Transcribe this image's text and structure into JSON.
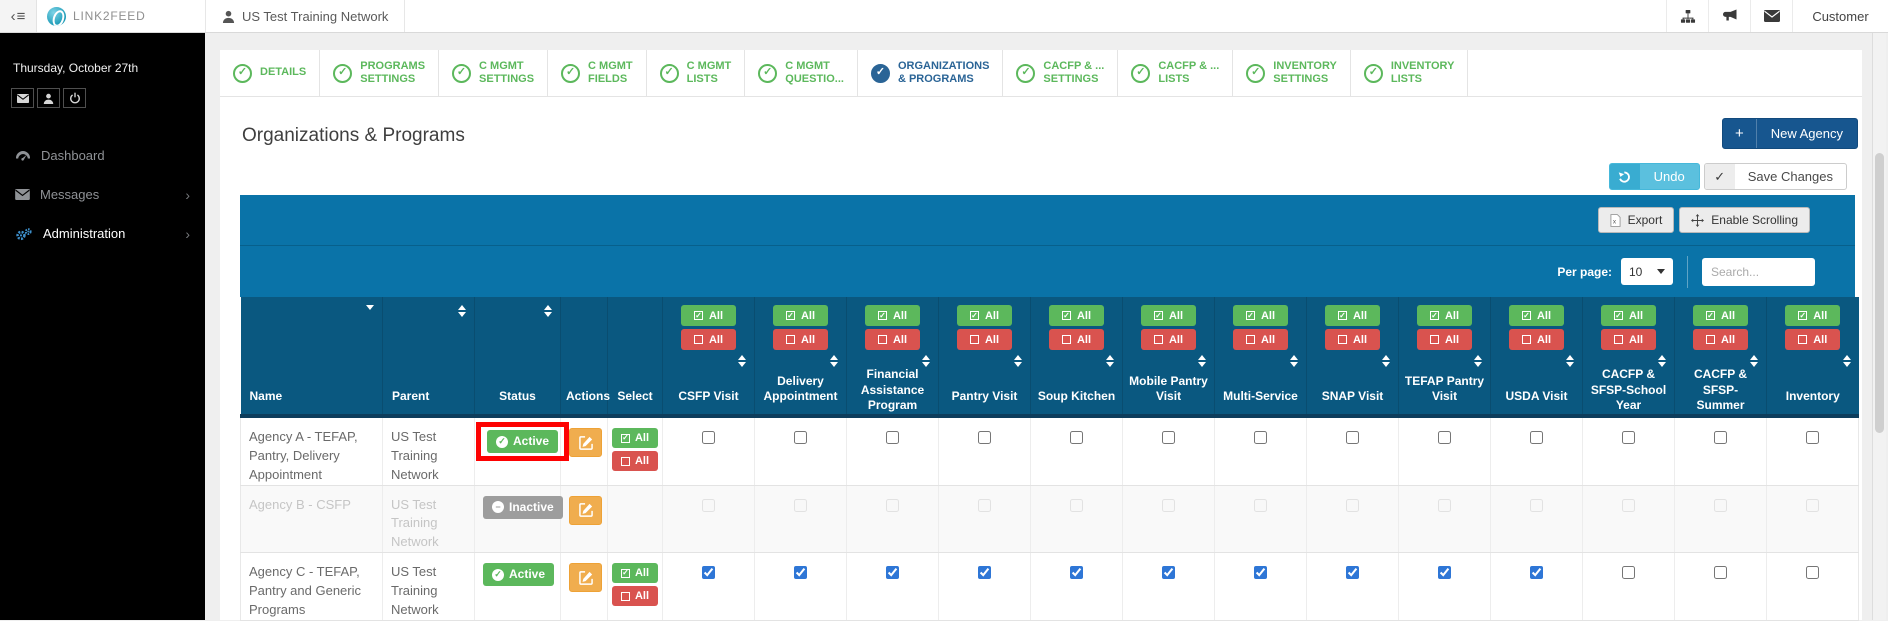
{
  "topbar": {
    "brand": "LINK2FEED",
    "network_tab": "US Test Training Network",
    "user_menu": "Customer"
  },
  "sidebar": {
    "date": "Thursday, October 27th",
    "items": [
      {
        "label": "Dashboard",
        "chevron": ""
      },
      {
        "label": "Messages",
        "chevron": "›"
      },
      {
        "label": "Administration",
        "chevron": "›"
      }
    ]
  },
  "wizard_tabs": [
    {
      "line1": "DETAILS",
      "line2": "",
      "active": false
    },
    {
      "line1": "PROGRAMS",
      "line2": "SETTINGS",
      "active": false
    },
    {
      "line1": "C MGMT",
      "line2": "SETTINGS",
      "active": false
    },
    {
      "line1": "C MGMT",
      "line2": "FIELDS",
      "active": false
    },
    {
      "line1": "C MGMT",
      "line2": "LISTS",
      "active": false
    },
    {
      "line1": "C MGMT",
      "line2": "QUESTIO...",
      "active": false
    },
    {
      "line1": "ORGANIZATIONS",
      "line2": "& PROGRAMS",
      "active": true
    },
    {
      "line1": "CACFP & ...",
      "line2": "SETTINGS",
      "active": false
    },
    {
      "line1": "CACFP & ...",
      "line2": "LISTS",
      "active": false
    },
    {
      "line1": "INVENTORY",
      "line2": "SETTINGS",
      "active": false
    },
    {
      "line1": "INVENTORY",
      "line2": "LISTS",
      "active": false
    }
  ],
  "page": {
    "title": "Organizations & Programs",
    "new_agency_label": "New Agency",
    "undo_label": "Undo",
    "save_label": "Save Changes"
  },
  "table": {
    "export_label": "Export",
    "enable_scrolling_label": "Enable Scrolling",
    "per_page_label": "Per page:",
    "per_page_value": "10",
    "search_placeholder": "Search...",
    "select_all_label": "All",
    "deselect_all_label": "All",
    "columns": [
      {
        "key": "name",
        "label": "Name",
        "sort": "desc",
        "program": false
      },
      {
        "key": "parent",
        "label": "Parent",
        "sort": "both",
        "program": false
      },
      {
        "key": "status",
        "label": "Status",
        "sort": "both",
        "program": false
      },
      {
        "key": "actions",
        "label": "Actions",
        "sort": "none",
        "program": false
      },
      {
        "key": "select",
        "label": "Select",
        "sort": "none",
        "program": false
      },
      {
        "key": "csfp-visit",
        "label": "CSFP Visit",
        "sort": "both",
        "program": true
      },
      {
        "key": "delivery-appointment",
        "label": "Delivery Appointment",
        "sort": "both",
        "program": true
      },
      {
        "key": "financial-assistance-program",
        "label": "Financial Assistance Program",
        "sort": "both",
        "program": true
      },
      {
        "key": "pantry-visit",
        "label": "Pantry Visit",
        "sort": "both",
        "program": true
      },
      {
        "key": "soup-kitchen",
        "label": "Soup Kitchen",
        "sort": "both",
        "program": true
      },
      {
        "key": "mobile-pantry-visit",
        "label": "Mobile Pantry Visit",
        "sort": "both",
        "program": true
      },
      {
        "key": "multi-service",
        "label": "Multi-Service",
        "sort": "both",
        "program": true
      },
      {
        "key": "snap-visit",
        "label": "SNAP Visit",
        "sort": "both",
        "program": true
      },
      {
        "key": "tefap-pantry-visit",
        "label": "TEFAP Pantry Visit",
        "sort": "both",
        "program": true
      },
      {
        "key": "usda-visit",
        "label": "USDA Visit",
        "sort": "both",
        "program": true
      },
      {
        "key": "cacfp-sfsp-school-year",
        "label": "CACFP & SFSP-School Year",
        "sort": "both",
        "program": true
      },
      {
        "key": "cacfp-sfsp-summer",
        "label": "CACFP & SFSP-Summer",
        "sort": "both",
        "program": true
      },
      {
        "key": "inventory",
        "label": "Inventory",
        "sort": "both",
        "program": true
      }
    ],
    "rows": [
      {
        "name": "Agency A - TEFAP, Pantry, Delivery Appointment",
        "parent": "US Test Training Network",
        "status": "Active",
        "status_highlighted": true,
        "select_buttons": true,
        "disabled": false,
        "programs": [
          false,
          false,
          false,
          false,
          false,
          false,
          false,
          false,
          false,
          false,
          false,
          false,
          false
        ]
      },
      {
        "name": "Agency B - CSFP",
        "parent": "US Test Training Network",
        "status": "Inactive",
        "status_highlighted": false,
        "select_buttons": false,
        "disabled": true,
        "programs": [
          false,
          false,
          false,
          false,
          false,
          false,
          false,
          false,
          false,
          false,
          false,
          false,
          false
        ]
      },
      {
        "name": "Agency C - TEFAP, Pantry and Generic Programs",
        "parent": "US Test Training Network",
        "status": "Active",
        "status_highlighted": false,
        "select_buttons": true,
        "disabled": false,
        "programs": [
          true,
          true,
          true,
          true,
          true,
          true,
          true,
          true,
          true,
          true,
          false,
          false,
          false
        ]
      }
    ]
  },
  "glyphs": {
    "check": "✓",
    "minus": "−",
    "plus": "+",
    "menu": "≡",
    "back": "‹"
  },
  "colors": {
    "band_blue": "#0a73a8",
    "header_blue": "#0a5880",
    "green": "#5cb85c",
    "red": "#d9534f",
    "orange": "#f0ad4e",
    "dark_blue_button": "#17568f",
    "light_blue_button": "#5bc0de",
    "inactive_grey": "#9d9d9d",
    "highlight_red": "#fd0202",
    "active_tab_blue": "#2a6496"
  }
}
